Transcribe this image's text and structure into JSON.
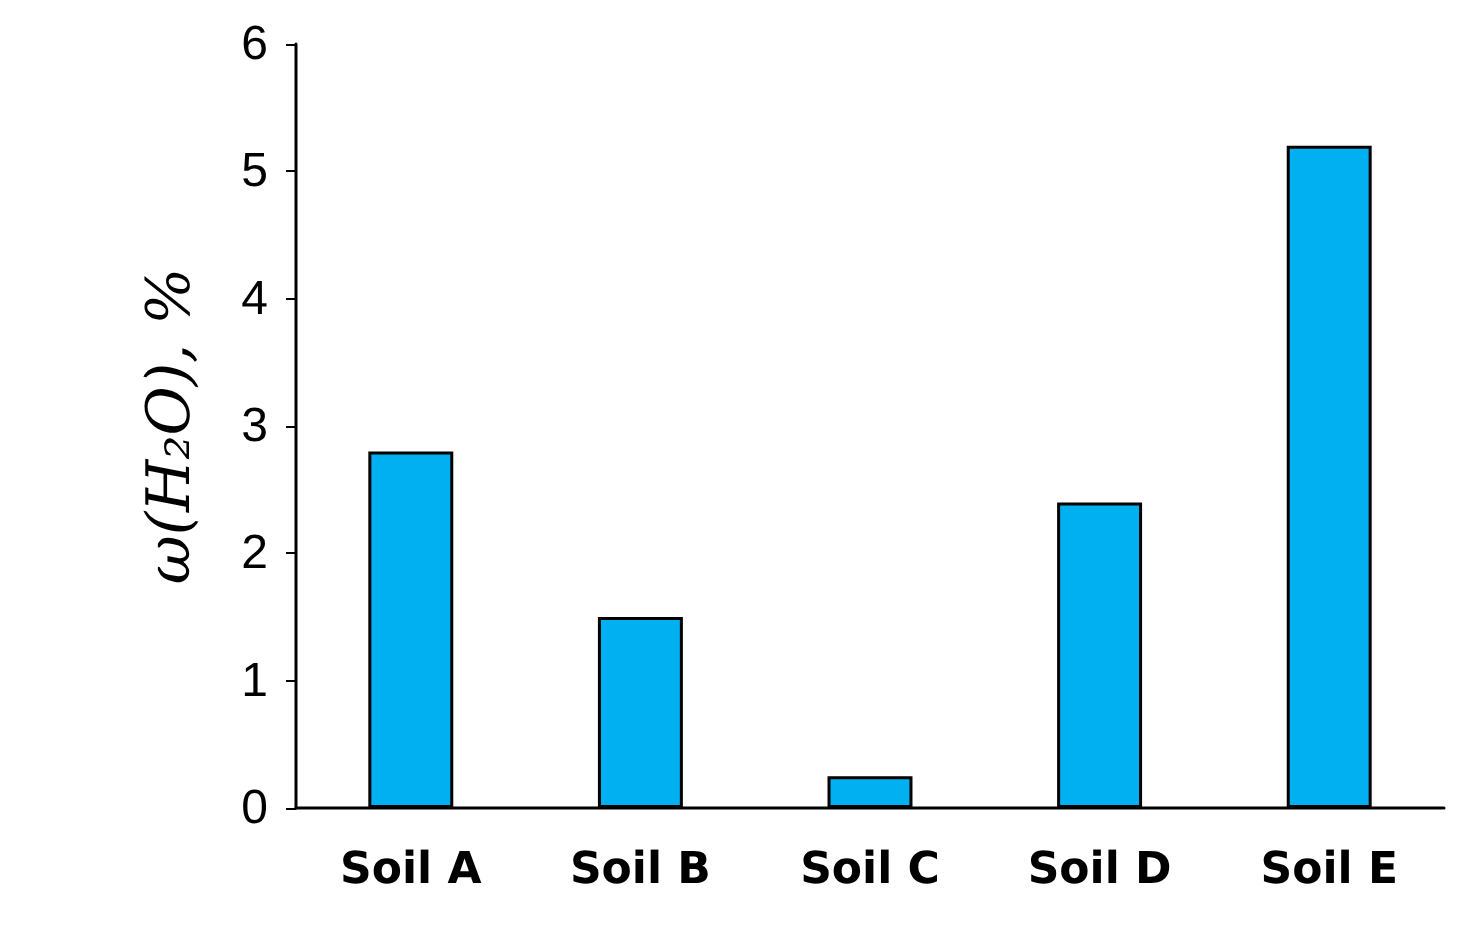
{
  "chart_data": {
    "type": "bar",
    "ylabel": "ω(H₂O), %",
    "categories": [
      "Soil A",
      "Soil B",
      "Soil C",
      "Soil D",
      "Soil E"
    ],
    "values": [
      2.8,
      1.5,
      0.25,
      2.4,
      5.2
    ],
    "color": "#00b0f0",
    "ylim": [
      0,
      6
    ],
    "yticks": [
      0,
      1,
      2,
      3,
      4,
      5,
      6
    ],
    "grid": false
  }
}
